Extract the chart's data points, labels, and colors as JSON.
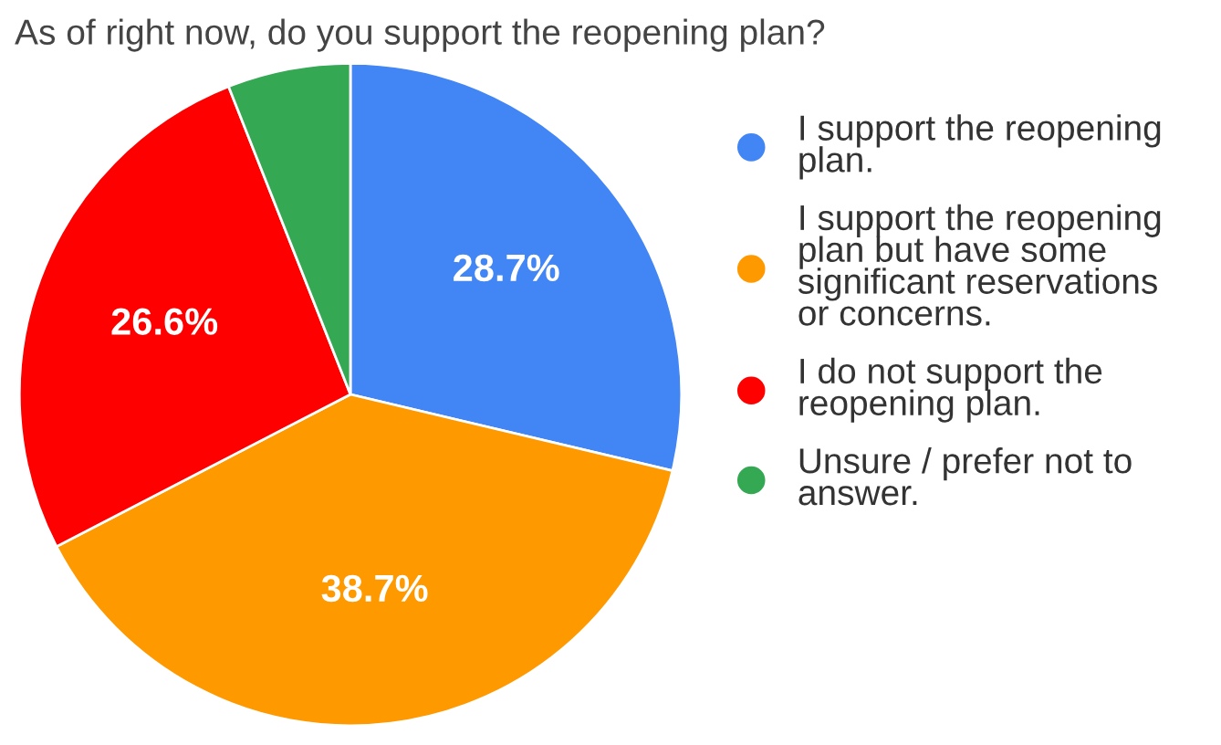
{
  "chart_data": {
    "type": "pie",
    "title": "As of right now, do you support the reopening plan?",
    "categories": [
      "I support the reopening plan.",
      "I support the reopening plan but have some significant reservations or concerns.",
      "I do not support the reopening plan.",
      "Unsure / prefer not to answer."
    ],
    "values": [
      28.7,
      38.7,
      26.6,
      6.0
    ],
    "colors": [
      "#4285f4",
      "#ff9900",
      "#ff0000",
      "#34a853"
    ],
    "value_labels": [
      "28.7%",
      "38.7%",
      "26.6%",
      null
    ],
    "legend": "right"
  }
}
